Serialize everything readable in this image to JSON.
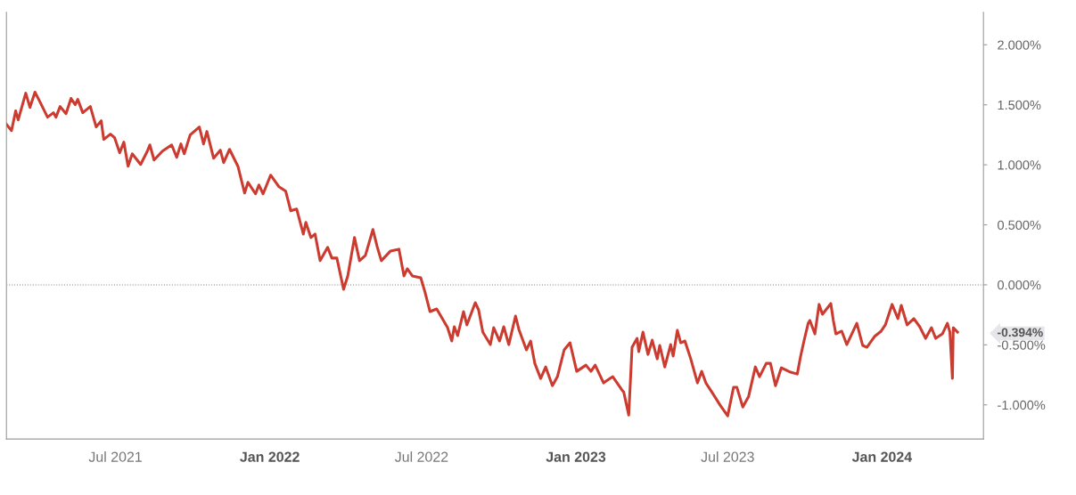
{
  "chart_data": {
    "type": "line",
    "line_style": "solid",
    "marker": "none",
    "grid": false,
    "legend": false,
    "xlim": [
      "2021-02-21",
      "2024-05-01"
    ],
    "ylim": [
      -1.285,
      2.27
    ],
    "xticks": [
      {
        "value": "2021-07-01",
        "label": "Jul 2021"
      },
      {
        "value": "2022-01-01",
        "label": "Jan 2022"
      },
      {
        "value": "2022-07-01",
        "label": "Jul 2022"
      },
      {
        "value": "2023-01-01",
        "label": "Jan 2023"
      },
      {
        "value": "2023-07-01",
        "label": "Jul 2023"
      },
      {
        "value": "2024-01-01",
        "label": "Jan 2024"
      }
    ],
    "yticks": [
      {
        "value": -1,
        "label": "-1.000%"
      },
      {
        "value": -0.5,
        "label": "-0.500%"
      },
      {
        "value": -0.394,
        "label": "-0.394%"
      },
      {
        "value": 0,
        "label": "0.000%"
      },
      {
        "value": 0.5,
        "label": "0.500%"
      },
      {
        "value": 1,
        "label": "1.000%"
      },
      {
        "value": 1.5,
        "label": "1.500%"
      },
      {
        "value": 2,
        "label": "2.000%"
      }
    ],
    "ref_lines": [
      {
        "axis": "y",
        "value": 0,
        "color": "#888888",
        "line_style": "dotted"
      }
    ],
    "series": [
      {
        "color": "#cc3b2f",
        "x": [
          "2021-02-21",
          "2021-02-27",
          "2021-03-04",
          "2021-03-07",
          "2021-03-16",
          "2021-03-21",
          "2021-03-27",
          "2021-04-01",
          "2021-04-11",
          "2021-04-18",
          "2021-04-21",
          "2021-04-26",
          "2021-05-03",
          "2021-05-09",
          "2021-05-14",
          "2021-05-17",
          "2021-05-23",
          "2021-06-01",
          "2021-06-08",
          "2021-06-14",
          "2021-06-17",
          "2021-06-25",
          "2021-06-30",
          "2021-07-06",
          "2021-07-11",
          "2021-07-16",
          "2021-07-21",
          "2021-07-31",
          "2021-08-08",
          "2021-08-11",
          "2021-08-16",
          "2021-08-26",
          "2021-09-06",
          "2021-09-12",
          "2021-09-17",
          "2021-09-21",
          "2021-09-28",
          "2021-10-09",
          "2021-10-14",
          "2021-10-18",
          "2021-10-26",
          "2021-11-03",
          "2021-11-07",
          "2021-11-14",
          "2021-11-24",
          "2021-12-02",
          "2021-12-06",
          "2021-12-15",
          "2021-12-19",
          "2021-12-24",
          "2022-01-02",
          "2022-01-12",
          "2022-01-20",
          "2022-01-26",
          "2022-02-02",
          "2022-02-10",
          "2022-02-13",
          "2022-02-19",
          "2022-02-24",
          "2022-03-02",
          "2022-03-11",
          "2022-03-16",
          "2022-03-22",
          "2022-03-30",
          "2022-04-04",
          "2022-04-12",
          "2022-04-18",
          "2022-04-25",
          "2022-05-04",
          "2022-05-09",
          "2022-05-14",
          "2022-05-25",
          "2022-06-04",
          "2022-06-10",
          "2022-06-14",
          "2022-06-20",
          "2022-06-30",
          "2022-07-05",
          "2022-07-11",
          "2022-07-19",
          "2022-07-24",
          "2022-08-01",
          "2022-08-06",
          "2022-08-09",
          "2022-08-13",
          "2022-08-20",
          "2022-08-24",
          "2022-09-03",
          "2022-09-07",
          "2022-09-12",
          "2022-09-21",
          "2022-09-25",
          "2022-10-02",
          "2022-10-07",
          "2022-10-13",
          "2022-10-21",
          "2022-10-25",
          "2022-11-03",
          "2022-11-08",
          "2022-11-13",
          "2022-11-20",
          "2022-11-26",
          "2022-12-04",
          "2022-12-10",
          "2022-12-18",
          "2022-12-25",
          "2023-01-02",
          "2023-01-13",
          "2023-01-19",
          "2023-01-24",
          "2023-02-03",
          "2023-02-14",
          "2023-02-25",
          "2023-02-27",
          "2023-03-05",
          "2023-03-09",
          "2023-03-15",
          "2023-03-17",
          "2023-03-22",
          "2023-03-28",
          "2023-04-02",
          "2023-04-08",
          "2023-04-11",
          "2023-04-17",
          "2023-04-24",
          "2023-04-27",
          "2023-05-02",
          "2023-05-06",
          "2023-05-11",
          "2023-05-18",
          "2023-05-26",
          "2023-05-31",
          "2023-06-05",
          "2023-06-14",
          "2023-06-22",
          "2023-07-01",
          "2023-07-08",
          "2023-07-12",
          "2023-07-19",
          "2023-07-26",
          "2023-08-03",
          "2023-08-08",
          "2023-08-16",
          "2023-08-21",
          "2023-08-27",
          "2023-09-03",
          "2023-09-14",
          "2023-09-22",
          "2023-09-26",
          "2023-09-30",
          "2023-10-05",
          "2023-10-07",
          "2023-10-13",
          "2023-10-18",
          "2023-10-22",
          "2023-11-01",
          "2023-11-04",
          "2023-11-07",
          "2023-11-14",
          "2023-11-20",
          "2023-12-02",
          "2023-12-09",
          "2023-12-14",
          "2023-12-23",
          "2023-12-31",
          "2024-01-05",
          "2024-01-13",
          "2024-01-20",
          "2024-01-24",
          "2024-01-31",
          "2024-02-08",
          "2024-02-15",
          "2024-02-22",
          "2024-02-29",
          "2024-03-05",
          "2024-03-13",
          "2024-03-19",
          "2024-03-22",
          "2024-03-25",
          "2024-03-26",
          "2024-03-31"
        ],
        "values": [
          1.337,
          1.285,
          1.449,
          1.374,
          1.597,
          1.478,
          1.605,
          1.538,
          1.397,
          1.434,
          1.397,
          1.486,
          1.426,
          1.553,
          1.501,
          1.545,
          1.434,
          1.486,
          1.315,
          1.367,
          1.211,
          1.256,
          1.226,
          1.1,
          1.189,
          0.988,
          1.092,
          1.003,
          1.114,
          1.166,
          1.04,
          1.114,
          1.166,
          1.062,
          1.174,
          1.092,
          1.248,
          1.315,
          1.174,
          1.278,
          1.055,
          1.122,
          1.018,
          1.129,
          0.988,
          0.765,
          0.854,
          0.758,
          0.832,
          0.758,
          0.914,
          0.817,
          0.78,
          0.617,
          0.632,
          0.423,
          0.52,
          0.394,
          0.423,
          0.201,
          0.312,
          0.223,
          0.223,
          -0.037,
          0.074,
          0.394,
          0.201,
          0.245,
          0.461,
          0.319,
          0.201,
          0.282,
          0.297,
          0.074,
          0.134,
          0.074,
          0.059,
          -0.059,
          -0.223,
          -0.201,
          -0.26,
          -0.357,
          -0.468,
          -0.349,
          -0.423,
          -0.223,
          -0.334,
          -0.149,
          -0.208,
          -0.394,
          -0.498,
          -0.357,
          -0.468,
          -0.349,
          -0.498,
          -0.26,
          -0.371,
          -0.542,
          -0.468,
          -0.654,
          -0.78,
          -0.684,
          -0.84,
          -0.765,
          -0.542,
          -0.483,
          -0.721,
          -0.669,
          -0.721,
          -0.669,
          -0.817,
          -0.765,
          -0.877,
          -0.892,
          -1.085,
          -0.52,
          -0.446,
          -0.557,
          -0.394,
          -0.58,
          -0.461,
          -0.617,
          -0.505,
          -0.684,
          -0.498,
          -0.594,
          -0.379,
          -0.483,
          -0.468,
          -0.617,
          -0.817,
          -0.721,
          -0.817,
          -0.914,
          -1.003,
          -1.092,
          -0.854,
          -0.854,
          -1.018,
          -0.929,
          -0.684,
          -0.765,
          -0.654,
          -0.654,
          -0.84,
          -0.691,
          -0.728,
          -0.743,
          -0.594,
          -0.468,
          -0.32,
          -0.297,
          -0.409,
          -0.163,
          -0.245,
          -0.156,
          -0.297,
          -0.409,
          -0.386,
          -0.498,
          -0.32,
          -0.505,
          -0.52,
          -0.431,
          -0.386,
          -0.334,
          -0.163,
          -0.282,
          -0.171,
          -0.334,
          -0.282,
          -0.349,
          -0.446,
          -0.357,
          -0.446,
          -0.409,
          -0.32,
          -0.394,
          -0.78,
          -0.357,
          -0.394
        ]
      }
    ]
  }
}
